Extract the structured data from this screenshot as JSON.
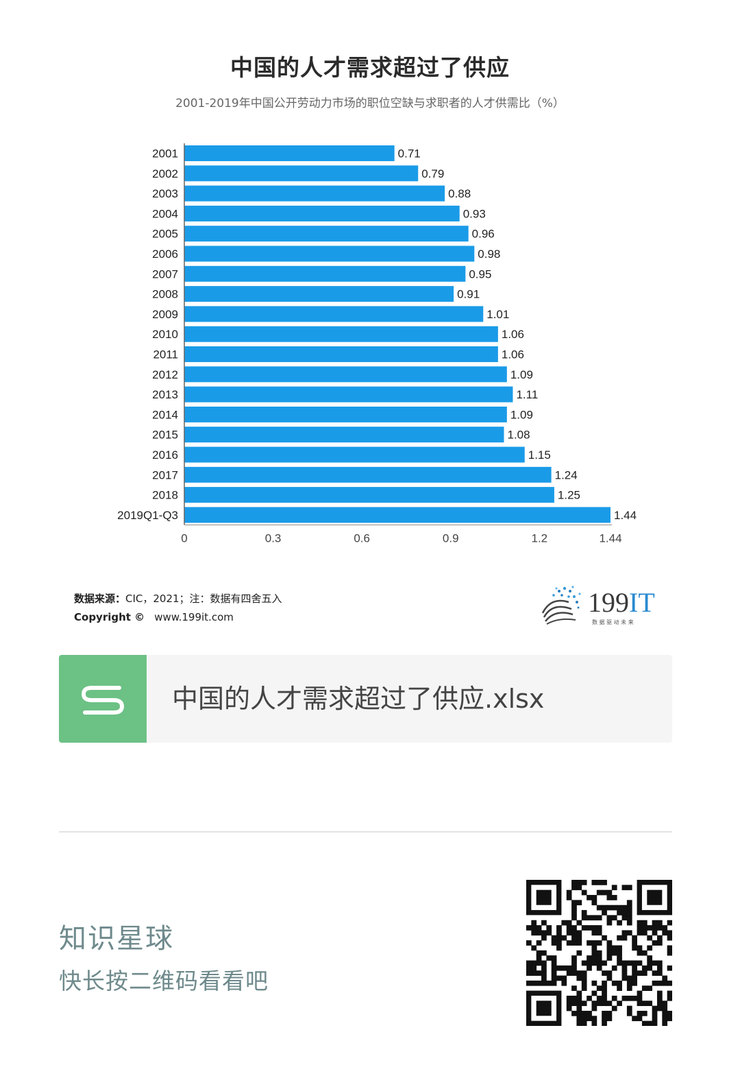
{
  "chart_data": {
    "type": "bar",
    "orientation": "horizontal",
    "title": "中国的人才需求超过了供应",
    "subtitle": "2001-2019年中国公开劳动力市场的职位空缺与求职者的人才供需比（%）",
    "categories": [
      "2001",
      "2002",
      "2003",
      "2004",
      "2005",
      "2006",
      "2007",
      "2008",
      "2009",
      "2010",
      "2011",
      "2012",
      "2013",
      "2014",
      "2015",
      "2016",
      "2017",
      "2018",
      "2019Q1-Q3"
    ],
    "values": [
      0.71,
      0.79,
      0.88,
      0.93,
      0.96,
      0.98,
      0.95,
      0.91,
      1.01,
      1.06,
      1.06,
      1.09,
      1.11,
      1.09,
      1.08,
      1.15,
      1.24,
      1.25,
      1.44
    ],
    "value_labels": [
      "0.71",
      "0.79",
      "0.88",
      "0.93",
      "0.96",
      "0.98",
      "0.95",
      "0.91",
      "1.01",
      "1.06",
      "1.06",
      "1.09",
      "1.11",
      "1.09",
      "1.08",
      "1.15",
      "1.24",
      "1.25",
      "1.44"
    ],
    "x_ticks": [
      0,
      0.3,
      0.6,
      0.9,
      1.2,
      1.44
    ],
    "x_tick_labels": [
      "0",
      "0.3",
      "0.6",
      "0.9",
      "1.2",
      "1.44"
    ],
    "xlim": [
      0,
      1.44
    ],
    "xlabel": "",
    "ylabel": "",
    "grid": false,
    "legend": "none",
    "bar_color": "#1a9be8"
  },
  "source": {
    "label": "数据来源：",
    "text": "CIC，2021；注：数据有四舍五入"
  },
  "copyright": {
    "label": "Copyright ©",
    "url": "www.199it.com"
  },
  "brand": {
    "name_num": "199",
    "name_it": "IT",
    "tagline": "数 据 驱 动 未 来"
  },
  "file_card": {
    "icon_letter": "S",
    "file_name": "中国的人才需求超过了供应.xlsx"
  },
  "footer": {
    "title": "知识星球",
    "subtitle": "快长按二维码看看吧"
  },
  "colors": {
    "bar": "#1a9be8",
    "file_icon_bg": "#6cc185",
    "footer_text": "#6f8a8c"
  }
}
